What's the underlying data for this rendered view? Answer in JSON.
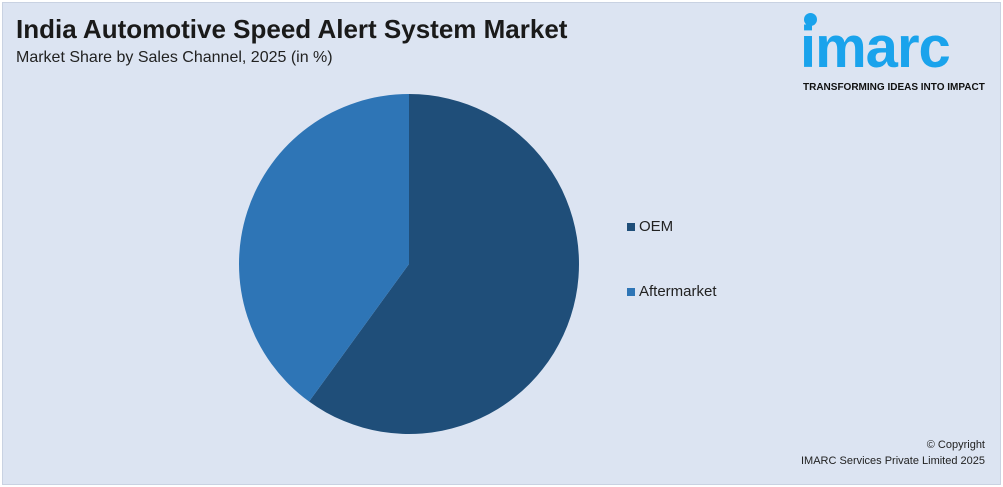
{
  "chart_data": {
    "type": "pie",
    "title": "India Automotive Speed Alert System Market",
    "subtitle": "Market Share by Sales Channel, 2025 (in %)",
    "categories": [
      "OEM",
      "Aftermarket"
    ],
    "values": [
      60,
      40
    ],
    "colors": [
      "#1f4e79",
      "#2e75b6"
    ],
    "legend_position": "right"
  },
  "logo": {
    "text": "imarc",
    "tagline": "TRANSFORMING IDEAS INTO IMPACT",
    "color": "#1aa3ec"
  },
  "footer": {
    "copyright": "© Copyright",
    "company": "IMARC Services Private Limited 2025"
  }
}
